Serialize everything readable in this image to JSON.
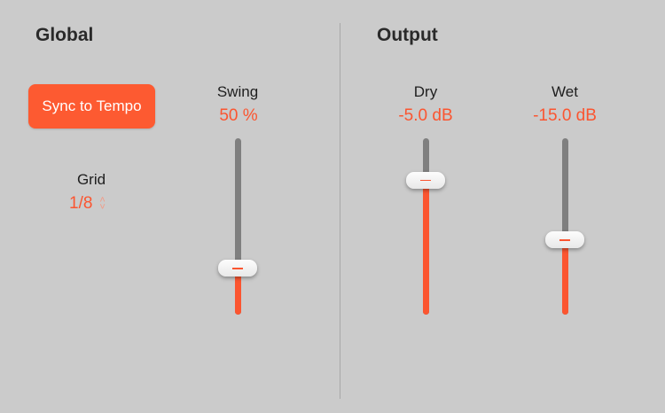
{
  "global": {
    "title": "Global",
    "sync_button": "Sync to Tempo",
    "grid": {
      "label": "Grid",
      "value": "1/8"
    },
    "swing": {
      "label": "Swing",
      "value": "50 %",
      "level": 0.26
    }
  },
  "output": {
    "title": "Output",
    "dry": {
      "label": "Dry",
      "value": "-5.0 dB",
      "level": 0.76
    },
    "wet": {
      "label": "Wet",
      "value": "-15.0 dB",
      "level": 0.42
    }
  },
  "colors": {
    "accent": "#fb5530",
    "background": "#cbcbcb",
    "track": "#7f7f7f"
  }
}
